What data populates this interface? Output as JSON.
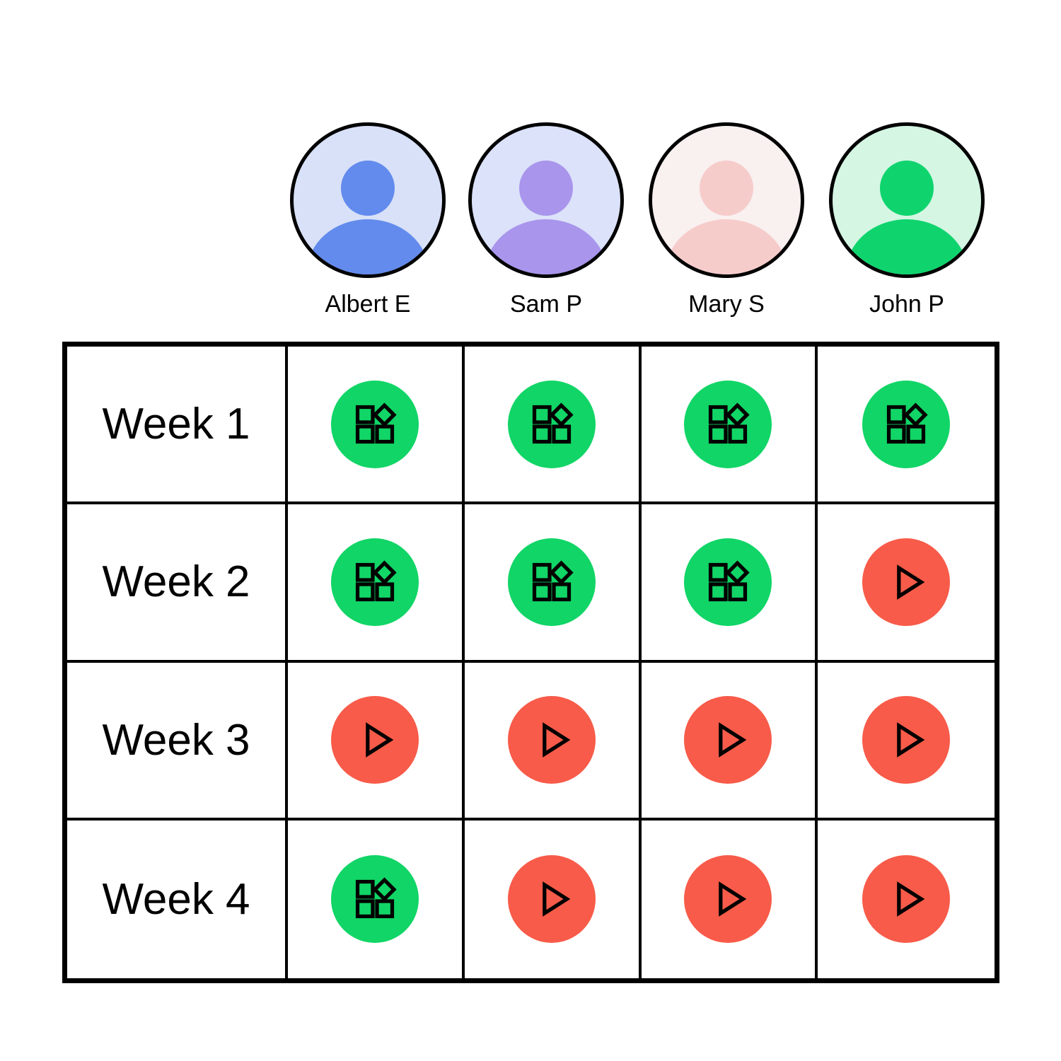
{
  "people": [
    {
      "name": "Albert E",
      "avatar_bg": "#D8E1F8",
      "avatar_fg": "#638BED"
    },
    {
      "name": "Sam P",
      "avatar_bg": "#DBE2F9",
      "avatar_fg": "#A995EC"
    },
    {
      "name": "Mary S",
      "avatar_bg": "#F9F0F0",
      "avatar_fg": "#F6CCCB"
    },
    {
      "name": "John P",
      "avatar_bg": "#D4F6E3",
      "avatar_fg": "#0FD46E"
    }
  ],
  "weeks": [
    {
      "label": "Week 1",
      "statuses": [
        "blocks",
        "blocks",
        "blocks",
        "blocks"
      ]
    },
    {
      "label": "Week 2",
      "statuses": [
        "blocks",
        "blocks",
        "blocks",
        "play"
      ]
    },
    {
      "label": "Week 3",
      "statuses": [
        "play",
        "play",
        "play",
        "play"
      ]
    },
    {
      "label": "Week 4",
      "statuses": [
        "blocks",
        "play",
        "play",
        "play"
      ]
    }
  ],
  "status_types": {
    "blocks": {
      "icon": "blocks-icon",
      "color": "#11D566"
    },
    "play": {
      "icon": "play-icon",
      "color": "#F85B49"
    }
  },
  "colors": {
    "border": "#000000",
    "background": "#FFFFFF",
    "text": "#000000"
  }
}
